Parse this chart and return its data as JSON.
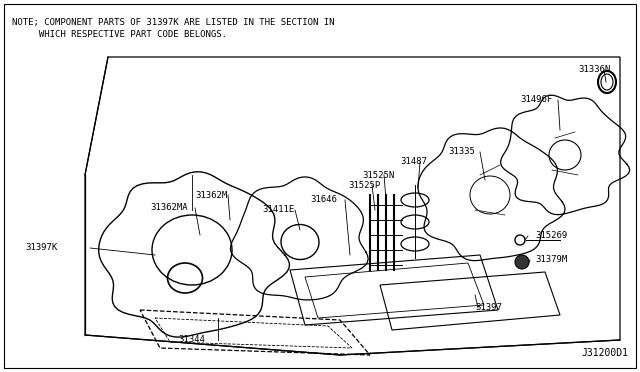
{
  "background_color": "#ffffff",
  "line_color": "#000000",
  "text_color": "#000000",
  "note_line1": "NOTE; COMPONENT PARTS OF 31397K ARE LISTED IN THE SECTION IN",
  "note_line2": "     WHICH RESPECTIVE PART CODE BELONGS.",
  "diagram_id": "J31200D1",
  "font_size_note": 6.5,
  "font_size_parts": 6.5,
  "font_size_id": 7,
  "fig_w": 6.4,
  "fig_h": 3.72,
  "dpi": 100
}
